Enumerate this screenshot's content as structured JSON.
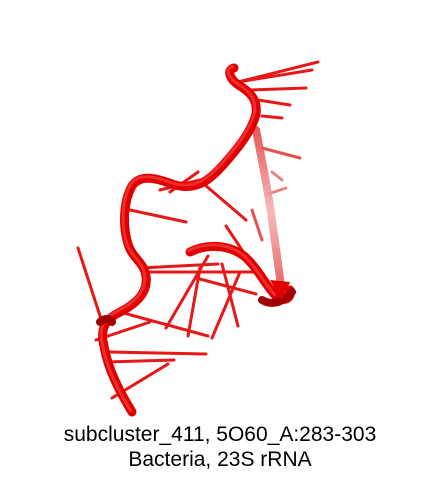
{
  "caption": {
    "line1": "subcluster_411, 5O60_A:283-303",
    "line2": "Bacteria, 23S rRNA"
  },
  "colors": {
    "background": "#ffffff",
    "backbone": "#e00000",
    "backbone_dark": "#a00000",
    "backbone_faded": "#f2a0a0",
    "bases": "#e81010"
  }
}
